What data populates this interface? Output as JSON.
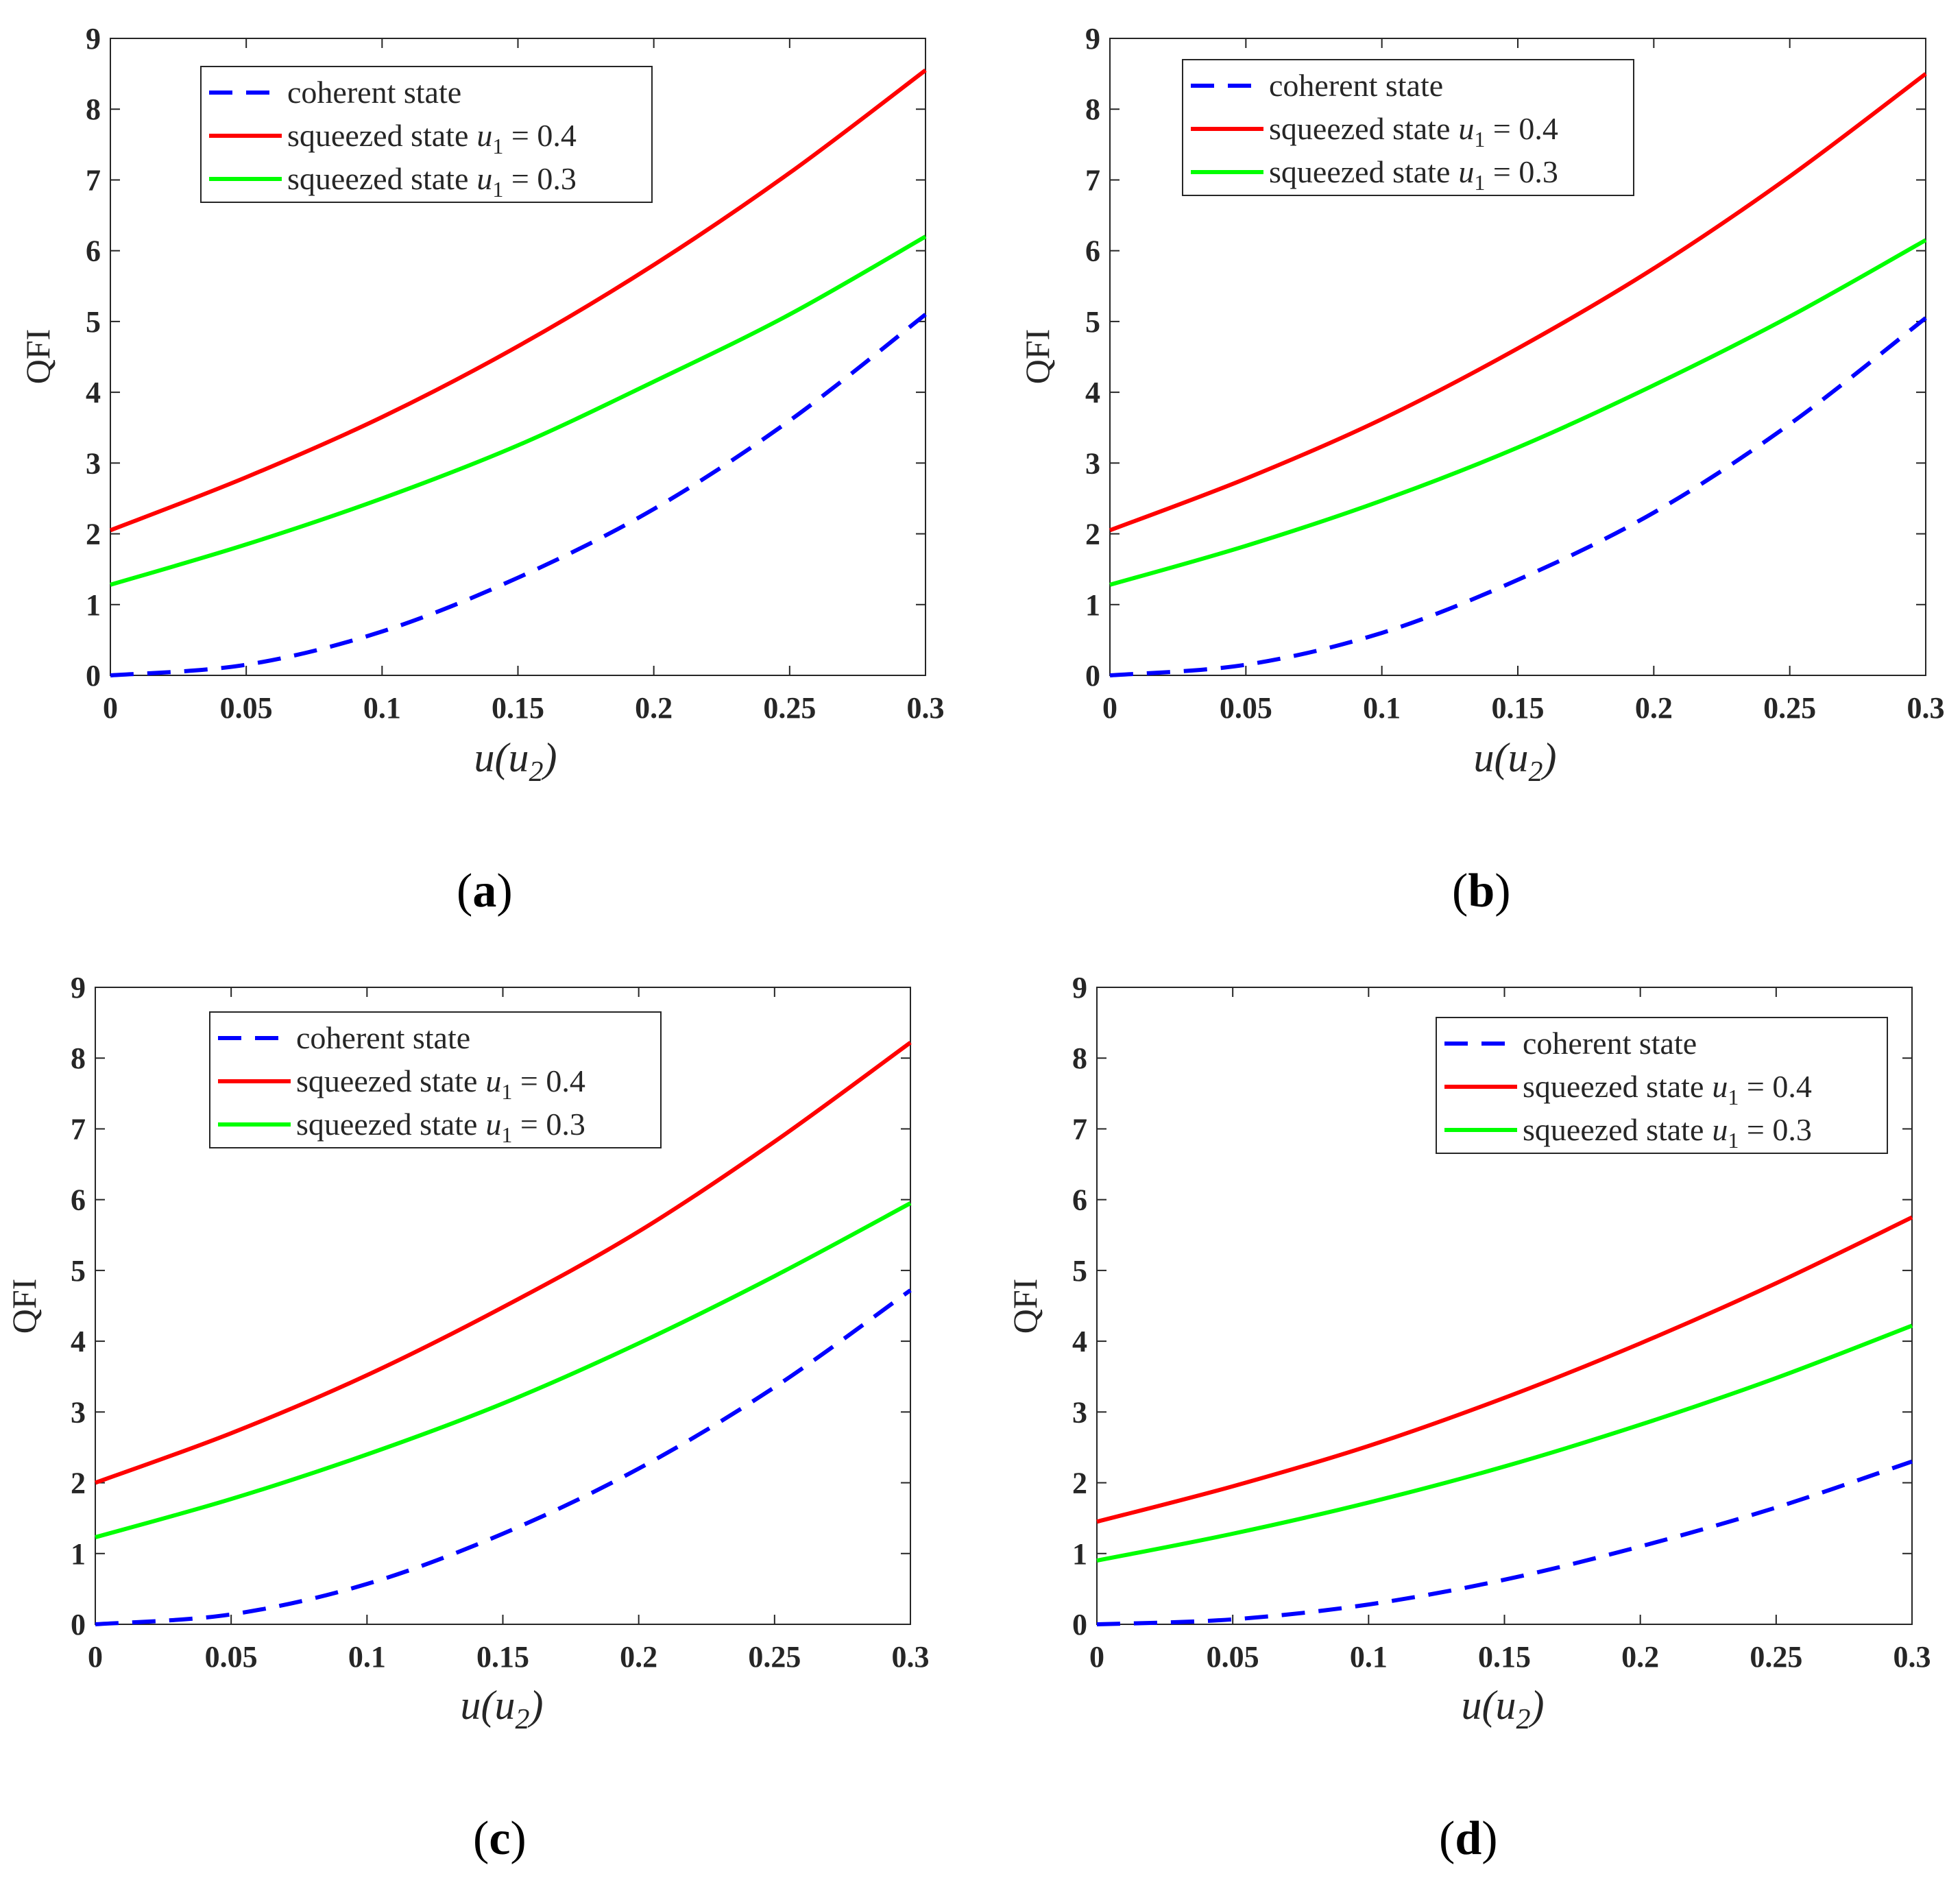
{
  "chart_data": [
    {
      "type": "line",
      "panel": "a",
      "caption": "(a)",
      "caption_letter": "a",
      "ylabel": "QFI",
      "xlabel": "u(u",
      "xlabel_sub": "2",
      "xlabel_close": ")",
      "xlim": [
        0,
        0.3
      ],
      "ylim": [
        0,
        9
      ],
      "xticks": [
        "0",
        "0.05",
        "0.1",
        "0.15",
        "0.2",
        "0.25",
        "0.3"
      ],
      "yticks": [
        "0",
        "1",
        "2",
        "3",
        "4",
        "5",
        "6",
        "7",
        "8",
        "9"
      ],
      "legend_placement": "top-left",
      "x": [
        0,
        0.05,
        0.1,
        0.15,
        0.2,
        0.25,
        0.3
      ],
      "series": [
        {
          "name": "coherent state",
          "color": "#0000ff",
          "style": "dashed",
          "values": [
            0.0,
            0.15,
            0.62,
            1.38,
            2.35,
            3.6,
            5.1
          ]
        },
        {
          "name": "squeezed state",
          "param": "u",
          "param_sub": "1",
          "param_value": " = 0.4",
          "color": "#ff0000",
          "style": "solid",
          "values": [
            2.05,
            2.8,
            3.65,
            4.65,
            5.8,
            7.1,
            8.55
          ]
        },
        {
          "name": "squeezed state",
          "param": "u",
          "param_sub": "1",
          "param_value": " = 0.3",
          "color": "#00ff00",
          "style": "solid",
          "values": [
            1.28,
            1.85,
            2.5,
            3.25,
            4.15,
            5.1,
            6.2
          ]
        }
      ]
    },
    {
      "type": "line",
      "panel": "b",
      "caption": "(b)",
      "caption_letter": "b",
      "ylabel": "QFI",
      "xlabel": "u(u",
      "xlabel_sub": "2",
      "xlabel_close": ")",
      "xlim": [
        0,
        0.3
      ],
      "ylim": [
        0,
        9
      ],
      "xticks": [
        "0",
        "0.05",
        "0.1",
        "0.15",
        "0.2",
        "0.25",
        "0.3"
      ],
      "yticks": [
        "0",
        "1",
        "2",
        "3",
        "4",
        "5",
        "6",
        "7",
        "8",
        "9"
      ],
      "legend_placement": "top-left",
      "x": [
        0,
        0.05,
        0.1,
        0.15,
        0.2,
        0.25,
        0.3
      ],
      "series": [
        {
          "name": "coherent state",
          "color": "#0000ff",
          "style": "dashed",
          "values": [
            0.0,
            0.15,
            0.6,
            1.35,
            2.3,
            3.55,
            5.05
          ]
        },
        {
          "name": "squeezed state",
          "param": "u",
          "param_sub": "1",
          "param_value": " = 0.4",
          "color": "#ff0000",
          "style": "solid",
          "values": [
            2.05,
            2.78,
            3.62,
            4.62,
            5.75,
            7.05,
            8.5
          ]
        },
        {
          "name": "squeezed state",
          "param": "u",
          "param_sub": "1",
          "param_value": " = 0.3",
          "color": "#00ff00",
          "style": "solid",
          "values": [
            1.28,
            1.83,
            2.47,
            3.22,
            4.1,
            5.07,
            6.15
          ]
        }
      ]
    },
    {
      "type": "line",
      "panel": "c",
      "caption": "(c)",
      "caption_letter": "c",
      "ylabel": "QFI",
      "xlabel": "u(u",
      "xlabel_sub": "2",
      "xlabel_close": ")",
      "xlim": [
        0,
        0.3
      ],
      "ylim": [
        0,
        9
      ],
      "xticks": [
        "0",
        "0.05",
        "0.1",
        "0.15",
        "0.2",
        "0.25",
        "0.3"
      ],
      "yticks": [
        "0",
        "1",
        "2",
        "3",
        "4",
        "5",
        "6",
        "7",
        "8",
        "9"
      ],
      "legend_placement": "top-left",
      "x": [
        0,
        0.05,
        0.1,
        0.15,
        0.2,
        0.25,
        0.3
      ],
      "series": [
        {
          "name": "coherent state",
          "color": "#0000ff",
          "style": "dashed",
          "values": [
            0.0,
            0.14,
            0.57,
            1.28,
            2.2,
            3.35,
            4.72
          ]
        },
        {
          "name": "squeezed state",
          "param": "u",
          "param_sub": "1",
          "param_value": " = 0.4",
          "color": "#ff0000",
          "style": "solid",
          "values": [
            2.0,
            2.7,
            3.52,
            4.48,
            5.55,
            6.82,
            8.22
          ]
        },
        {
          "name": "squeezed state",
          "param": "u",
          "param_sub": "1",
          "param_value": " = 0.3",
          "color": "#00ff00",
          "style": "solid",
          "values": [
            1.23,
            1.77,
            2.4,
            3.12,
            3.97,
            4.92,
            5.95
          ]
        }
      ]
    },
    {
      "type": "line",
      "panel": "d",
      "caption": "(d)",
      "caption_letter": "d",
      "ylabel": "QFI",
      "xlabel": "u(u",
      "xlabel_sub": "2",
      "xlabel_close": ")",
      "xlim": [
        0,
        0.3
      ],
      "ylim": [
        0,
        9
      ],
      "xticks": [
        "0",
        "0.05",
        "0.1",
        "0.15",
        "0.2",
        "0.25",
        "0.3"
      ],
      "yticks": [
        "0",
        "1",
        "2",
        "3",
        "4",
        "5",
        "6",
        "7",
        "8",
        "9"
      ],
      "legend_placement": "top-right",
      "x": [
        0,
        0.05,
        0.1,
        0.15,
        0.2,
        0.25,
        0.3
      ],
      "series": [
        {
          "name": "coherent state",
          "color": "#0000ff",
          "style": "dashed",
          "values": [
            0.0,
            0.07,
            0.28,
            0.63,
            1.1,
            1.65,
            2.3
          ]
        },
        {
          "name": "squeezed state",
          "param": "u",
          "param_sub": "1",
          "param_value": " = 0.4",
          "color": "#ff0000",
          "style": "solid",
          "values": [
            1.45,
            1.95,
            2.52,
            3.2,
            3.97,
            4.82,
            5.75
          ]
        },
        {
          "name": "squeezed state",
          "param": "u",
          "param_sub": "1",
          "param_value": " = 0.3",
          "color": "#00ff00",
          "style": "solid",
          "values": [
            0.9,
            1.28,
            1.72,
            2.23,
            2.82,
            3.48,
            4.22
          ]
        }
      ]
    }
  ]
}
